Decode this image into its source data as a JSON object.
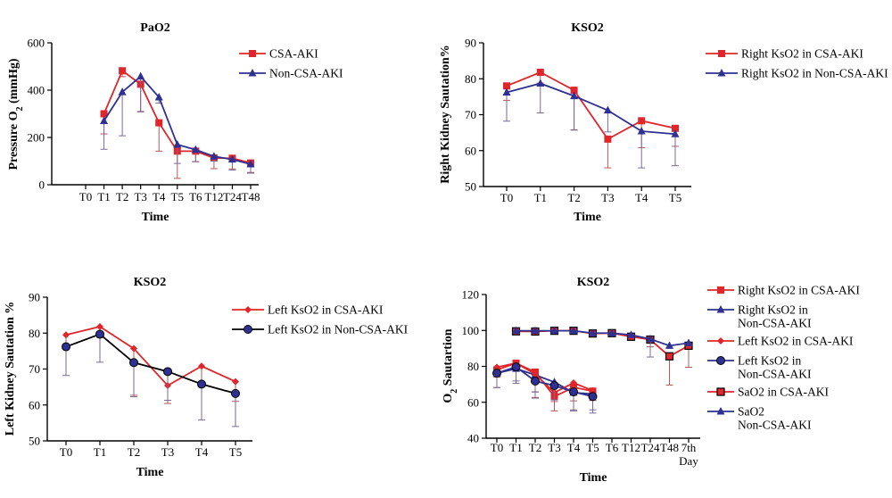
{
  "chart_data": [
    {
      "type": "line",
      "title": "PaO2",
      "xlabel": "Time",
      "ylabel_main": "Pressure O",
      "ylabel_sub": "2",
      "ylabel_tail": " (mmHg)",
      "categories": [
        "T0",
        "T1",
        "T2",
        "T3",
        "T4",
        "T5",
        "T6",
        "T12",
        "T24",
        "T48"
      ],
      "ylim": [
        0,
        600
      ],
      "yticks": [
        0,
        200,
        400,
        600
      ],
      "legend_position": "right",
      "series": [
        {
          "name": "CSA-AKI",
          "color": "#e0252b",
          "marker": "square",
          "values": [
            null,
            300,
            482,
            425,
            262,
            142,
            142,
            113,
            112,
            92
          ],
          "error": [
            null,
            85,
            25,
            115,
            120,
            115,
            45,
            45,
            45,
            40
          ]
        },
        {
          "name": "Non-CSA-AKI",
          "color": "#2e3192",
          "marker": "triangle",
          "values": [
            null,
            270,
            392,
            458,
            370,
            170,
            148,
            120,
            107,
            87
          ],
          "error": [
            null,
            120,
            185,
            150,
            25,
            80,
            50,
            20,
            45,
            38
          ]
        }
      ]
    },
    {
      "type": "line",
      "title": "KSO2",
      "xlabel": "Time",
      "ylabel": "Right Kidney Sautation%",
      "categories": [
        "T0",
        "T1",
        "T2",
        "T3",
        "T4",
        "T5"
      ],
      "ylim": [
        50,
        90
      ],
      "yticks": [
        50,
        60,
        70,
        80,
        90
      ],
      "legend_position": "right",
      "series": [
        {
          "name": "Right KsO2 in CSA-AKI",
          "color": "#e0252b",
          "marker": "square",
          "values": [
            78,
            81.8,
            76.8,
            63.2,
            68.3,
            66.2
          ],
          "error": [
            4,
            3,
            11,
            8,
            7.5,
            5
          ]
        },
        {
          "name": "Right KsO2 in Non-CSA-AKI",
          "color": "#2e3192",
          "marker": "triangle",
          "values": [
            76.2,
            78.7,
            75.2,
            71.2,
            65.4,
            64.6
          ],
          "error": [
            8,
            8.2,
            9.5,
            6,
            10.2,
            8.8
          ]
        }
      ]
    },
    {
      "type": "line",
      "title": "KSO2",
      "xlabel": "Time",
      "ylabel": "Left Kidney Sautation %",
      "categories": [
        "T0",
        "T1",
        "T2",
        "T3",
        "T4",
        "T5"
      ],
      "ylim": [
        50,
        90
      ],
      "yticks": [
        50,
        60,
        70,
        80,
        90
      ],
      "legend_position": "right",
      "series": [
        {
          "name": "Left KsO2 in CSA-AKI",
          "color": "#e0252b",
          "marker": "diamond",
          "values": [
            79.5,
            81.8,
            75.7,
            65.4,
            70.8,
            66.5
          ],
          "error": [
            3,
            3,
            13,
            5,
            5,
            5.5
          ]
        },
        {
          "name": "Left KsO2 in Non-CSA-AKI",
          "color": "#2e3192",
          "marker": "circle",
          "line_color": "#000000",
          "values": [
            76.2,
            79.7,
            71.8,
            69.3,
            65.8,
            63.2
          ],
          "error": [
            8,
            7.8,
            9.5,
            8,
            10,
            9.2
          ]
        }
      ]
    },
    {
      "type": "line",
      "title": "KSO2",
      "xlabel": "Time",
      "ylabel_main": "O",
      "ylabel_sub": "2",
      "ylabel_tail": " Sautartion",
      "categories": [
        "T0",
        "T1",
        "T2",
        "T3",
        "T4",
        "T5",
        "T6",
        "T12",
        "T24",
        "T48",
        "7th Day"
      ],
      "ylim": [
        40,
        120
      ],
      "yticks": [
        40,
        60,
        80,
        100,
        120
      ],
      "legend_position": "right",
      "series": [
        {
          "name": "Right KsO2 in CSA-AKI",
          "color": "#e0252b",
          "marker": "square",
          "values": [
            78,
            81.8,
            76.8,
            63.2,
            68.3,
            66.2,
            null,
            null,
            null,
            null,
            null
          ],
          "error": [
            4,
            3,
            11,
            8,
            7.5,
            5,
            null,
            null,
            null,
            null,
            null
          ]
        },
        {
          "name": "Right KsO2 in Non-CSA-AKI",
          "color": "#2e3192",
          "marker": "triangle",
          "values": [
            76.2,
            78.7,
            75.2,
            71.2,
            65.4,
            64.6,
            null,
            null,
            null,
            null,
            null
          ],
          "error": [
            8,
            8.2,
            9.5,
            6,
            10.2,
            8.8,
            null,
            null,
            null,
            null,
            null
          ]
        },
        {
          "name": "Left KsO2 in CSA-AKI",
          "color": "#e0252b",
          "marker": "diamond",
          "values": [
            79.5,
            81.8,
            75.7,
            65.4,
            70.8,
            66.5,
            null,
            null,
            null,
            null,
            null
          ],
          "error": [
            3,
            3,
            13,
            5,
            5,
            5.5,
            null,
            null,
            null,
            null,
            null
          ]
        },
        {
          "name": "Left KsO2 in Non-CSA-AKI",
          "color": "#2e3192",
          "marker": "circle",
          "values": [
            76.2,
            79.7,
            71.8,
            69.3,
            65.8,
            63.2,
            null,
            null,
            null,
            null,
            null
          ],
          "error": [
            8,
            7.8,
            9.5,
            8,
            10,
            9.2,
            null,
            null,
            null,
            null,
            null
          ]
        },
        {
          "name": "SaO2 in CSA-AKI",
          "color": "#e0252b",
          "marker": "square-outlined",
          "values": [
            null,
            99.5,
            99.4,
            99.8,
            99.8,
            98.3,
            98.5,
            96.5,
            94.9,
            85.6,
            91.5
          ],
          "error": [
            null,
            1,
            1,
            1,
            1,
            1,
            1,
            2,
            4,
            16,
            12
          ]
        },
        {
          "name": "SaO2 Non-CSA-AKI",
          "color": "#2e3192",
          "marker": "triangle",
          "values": [
            null,
            99.8,
            99.8,
            99.8,
            99.8,
            98.5,
            98.5,
            97.5,
            95.2,
            91.5,
            93
          ],
          "error": [
            null,
            1,
            1,
            1,
            1,
            1,
            1,
            1,
            10,
            1,
            1
          ]
        }
      ]
    }
  ]
}
